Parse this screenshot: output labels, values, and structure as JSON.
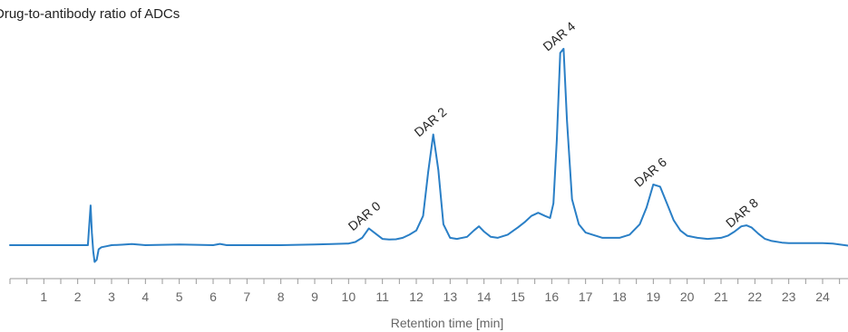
{
  "chart_data": {
    "type": "line",
    "title": "Drug-to-antibody ratio of ADCs",
    "xlabel": "Retention time [min]",
    "ylabel": "",
    "xlim": [
      0,
      24.75
    ],
    "ylim": [
      -0.05,
      1.0
    ],
    "x_ticks": [
      1,
      2,
      3,
      4,
      5,
      6,
      7,
      8,
      9,
      10,
      11,
      12,
      13,
      14,
      15,
      16,
      17,
      18,
      19,
      20,
      21,
      22,
      23,
      24
    ],
    "grid": false,
    "legend": "none",
    "series": [
      {
        "color": "#2a7fc6",
        "x": [
          0,
          2.0,
          2.3,
          2.38,
          2.42,
          2.46,
          2.5,
          2.56,
          2.62,
          2.7,
          2.85,
          3.0,
          3.3,
          3.6,
          4.0,
          5.0,
          6.0,
          6.2,
          6.4,
          7.0,
          8.0,
          9.0,
          9.5,
          10.0,
          10.2,
          10.4,
          10.6,
          10.8,
          11.0,
          11.2,
          11.4,
          11.6,
          11.8,
          12.0,
          12.2,
          12.35,
          12.5,
          12.65,
          12.8,
          13.0,
          13.2,
          13.5,
          13.7,
          13.85,
          14.0,
          14.2,
          14.4,
          14.7,
          15.0,
          15.2,
          15.4,
          15.6,
          15.8,
          15.95,
          16.05,
          16.15,
          16.25,
          16.35,
          16.45,
          16.6,
          16.8,
          17.0,
          17.5,
          18.0,
          18.3,
          18.6,
          18.8,
          19.0,
          19.2,
          19.4,
          19.6,
          19.8,
          20.0,
          20.3,
          20.6,
          21.0,
          21.2,
          21.4,
          21.6,
          21.75,
          21.9,
          22.1,
          22.3,
          22.5,
          22.8,
          23.0,
          23.5,
          24.0,
          24.3,
          24.75
        ],
        "y": [
          0.0,
          0.0,
          0.0,
          0.19,
          0.06,
          -0.03,
          -0.08,
          -0.07,
          -0.02,
          -0.01,
          -0.005,
          0.0,
          0.002,
          0.005,
          0.0,
          0.003,
          0.0,
          0.006,
          0.0,
          0.0,
          0.0,
          0.003,
          0.005,
          0.008,
          0.015,
          0.035,
          0.08,
          0.055,
          0.03,
          0.027,
          0.028,
          0.035,
          0.05,
          0.07,
          0.14,
          0.35,
          0.53,
          0.36,
          0.1,
          0.035,
          0.03,
          0.04,
          0.07,
          0.09,
          0.065,
          0.04,
          0.035,
          0.05,
          0.085,
          0.11,
          0.14,
          0.155,
          0.14,
          0.13,
          0.2,
          0.5,
          0.92,
          0.94,
          0.6,
          0.22,
          0.1,
          0.06,
          0.035,
          0.035,
          0.05,
          0.1,
          0.18,
          0.29,
          0.28,
          0.2,
          0.12,
          0.07,
          0.045,
          0.035,
          0.03,
          0.035,
          0.045,
          0.065,
          0.09,
          0.095,
          0.085,
          0.055,
          0.03,
          0.02,
          0.012,
          0.01,
          0.01,
          0.01,
          0.008,
          -0.002
        ]
      }
    ],
    "annotations": [
      {
        "text": "DAR 0",
        "x": 10.55,
        "y": 0.08
      },
      {
        "text": "DAR 2",
        "x": 12.5,
        "y": 0.53
      },
      {
        "text": "DAR 4",
        "x": 16.3,
        "y": 0.94
      },
      {
        "text": "DAR 6",
        "x": 19.0,
        "y": 0.29
      },
      {
        "text": "DAR 8",
        "x": 21.7,
        "y": 0.095
      }
    ]
  }
}
